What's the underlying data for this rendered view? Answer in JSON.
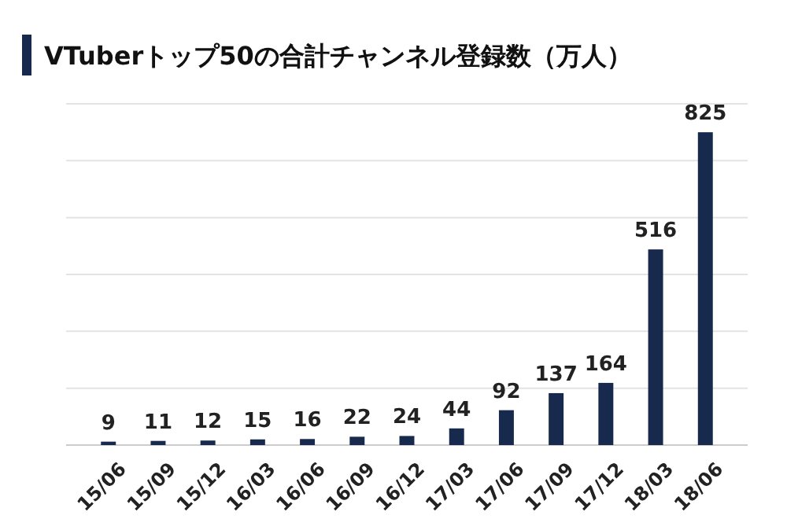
{
  "chart_data": {
    "type": "bar",
    "title": "VTuberトップ50の合計チャンネル登録数（万人）",
    "categories": [
      "15/06",
      "15/09",
      "15/12",
      "16/03",
      "16/06",
      "16/09",
      "16/12",
      "17/03",
      "17/06",
      "17/09",
      "17/12",
      "18/03",
      "18/06"
    ],
    "values": [
      9,
      11,
      12,
      15,
      16,
      22,
      24,
      44,
      92,
      137,
      164,
      516,
      825
    ],
    "color": "#172a4e",
    "ylim": [
      0,
      900
    ],
    "yticks": [
      {
        "value": 0,
        "label": null
      },
      {
        "value": 150,
        "label": null
      },
      {
        "value": 300,
        "label": null
      },
      {
        "value": 450,
        "label": null
      },
      {
        "value": 600,
        "label": null
      },
      {
        "value": 750,
        "label": null
      },
      {
        "value": 900,
        "label": null
      }
    ],
    "grid": "y",
    "tick_labels": "x",
    "data_labels": true
  }
}
